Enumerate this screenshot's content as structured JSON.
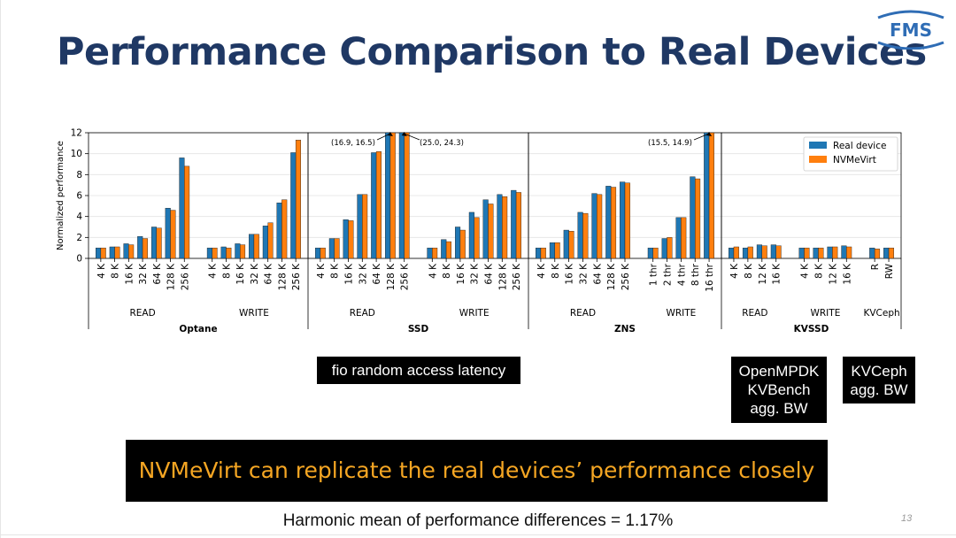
{
  "slide": {
    "title": "Performance Comparison to Real Devices",
    "logo": "FMS",
    "page_number": "13",
    "captions": {
      "fio": "fio random access latency",
      "openmpdk": [
        "OpenMPDK",
        "KVBench",
        "agg. BW"
      ],
      "kvceph": [
        "KVCeph",
        "agg. BW"
      ]
    },
    "banner": "NVMeVirt can replicate the real devices’ performance closely",
    "footnote": "Harmonic mean of performance differences = 1.17%"
  },
  "colors": {
    "real": "#1f77b4",
    "virt": "#ff7f0e",
    "title": "#1f3864",
    "banner_text": "#f5a623"
  },
  "chart_data": {
    "type": "bar",
    "ylabel": "Normalized performance",
    "ylim": [
      0,
      12
    ],
    "yticks": [
      0,
      2,
      4,
      6,
      8,
      10,
      12
    ],
    "legend": {
      "position": "top-right",
      "entries": [
        "Real device",
        "NVMeVirt"
      ]
    },
    "series_names": [
      "Real device",
      "NVMeVirt"
    ],
    "devices": [
      {
        "name": "Optane",
        "groups": [
          {
            "name": "READ",
            "categories": [
              "4 K",
              "8 K",
              "16 K",
              "32 K",
              "64 K",
              "128 K",
              "256 K"
            ],
            "real": [
              1.0,
              1.1,
              1.4,
              2.1,
              3.0,
              4.8,
              9.6
            ],
            "virt": [
              1.0,
              1.1,
              1.3,
              1.9,
              2.9,
              4.6,
              8.8
            ]
          },
          {
            "name": "WRITE",
            "categories": [
              "4 K",
              "8 K",
              "16 K",
              "32 K",
              "64 K",
              "128 K",
              "256 K"
            ],
            "real": [
              1.0,
              1.1,
              1.4,
              2.3,
              3.1,
              5.3,
              10.1
            ],
            "virt": [
              1.0,
              1.0,
              1.3,
              2.3,
              3.4,
              5.6,
              11.3
            ]
          }
        ]
      },
      {
        "name": "SSD",
        "groups": [
          {
            "name": "READ",
            "categories": [
              "4 K",
              "8 K",
              "16 K",
              "32 K",
              "64 K",
              "128 K",
              "256 K"
            ],
            "real": [
              1.0,
              1.9,
              3.7,
              6.1,
              10.1,
              16.9,
              25.0
            ],
            "virt": [
              1.0,
              1.9,
              3.6,
              6.1,
              10.2,
              16.5,
              24.3
            ]
          },
          {
            "name": "WRITE",
            "categories": [
              "4 K",
              "8 K",
              "16 K",
              "32 K",
              "64 K",
              "128 K",
              "256 K"
            ],
            "real": [
              1.0,
              1.8,
              3.0,
              4.4,
              5.6,
              6.1,
              6.5
            ],
            "virt": [
              1.0,
              1.6,
              2.7,
              3.9,
              5.2,
              5.9,
              6.3
            ]
          }
        ]
      },
      {
        "name": "ZNS",
        "groups": [
          {
            "name": "READ",
            "categories": [
              "4 K",
              "8 K",
              "16 K",
              "32 K",
              "64 K",
              "128 K",
              "256 K"
            ],
            "real": [
              1.0,
              1.5,
              2.7,
              4.4,
              6.2,
              6.9,
              7.3
            ],
            "virt": [
              1.0,
              1.5,
              2.6,
              4.3,
              6.1,
              6.8,
              7.2
            ]
          },
          {
            "name": "WRITE",
            "categories": [
              "1 thr",
              "2 thr",
              "4 thr",
              "8 thr",
              "16 thr"
            ],
            "real": [
              1.0,
              1.9,
              3.9,
              7.8,
              15.5
            ],
            "virt": [
              1.0,
              2.0,
              3.9,
              7.6,
              14.9
            ]
          }
        ]
      },
      {
        "name": "KVSSD",
        "groups": [
          {
            "name": "READ",
            "categories": [
              "4 K",
              "8 K",
              "12 K",
              "16 K"
            ],
            "real": [
              1.0,
              1.0,
              1.3,
              1.3
            ],
            "virt": [
              1.1,
              1.1,
              1.2,
              1.2
            ]
          },
          {
            "name": "WRITE",
            "categories": [
              "4 K",
              "8 K",
              "12 K",
              "16 K"
            ],
            "real": [
              1.0,
              1.0,
              1.1,
              1.2
            ],
            "virt": [
              1.0,
              1.0,
              1.1,
              1.1
            ]
          },
          {
            "name": "KVCeph",
            "categories": [
              "R",
              "RW"
            ],
            "real": [
              1.0,
              1.0
            ],
            "virt": [
              0.9,
              1.0
            ]
          }
        ]
      }
    ],
    "annotations": [
      {
        "device": "SSD",
        "group": "READ",
        "category": "128 K",
        "text": "(16.9, 16.5)"
      },
      {
        "device": "SSD",
        "group": "READ",
        "category": "256 K",
        "text": "(25.0, 24.3)"
      },
      {
        "device": "ZNS",
        "group": "WRITE",
        "category": "16 thr",
        "text": "(15.5, 14.9)"
      }
    ]
  }
}
